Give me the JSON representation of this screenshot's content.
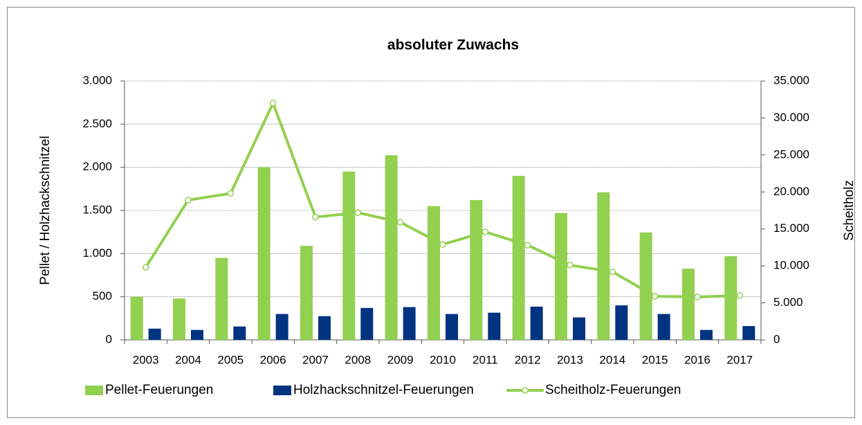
{
  "chart_data": {
    "type": "bar-line",
    "title": "absoluter Zuwachs",
    "y_label": "Pellet / Holzhackschnitzel",
    "y2_label": "Scheitholz",
    "categories": [
      "2003",
      "2004",
      "2005",
      "2006",
      "2007",
      "2008",
      "2009",
      "2010",
      "2011",
      "2012",
      "2013",
      "2014",
      "2015",
      "2016",
      "2017"
    ],
    "series": [
      {
        "name": "Pellet-Feuerungen",
        "type": "bar",
        "color": "#92d050",
        "values": [
          500,
          480,
          950,
          2000,
          1090,
          1950,
          2140,
          1550,
          1620,
          1900,
          1470,
          1710,
          1245,
          825,
          970
        ]
      },
      {
        "name": "Holzhackschnitzel-Feuerungen",
        "type": "bar",
        "color": "#003380",
        "values": [
          130,
          115,
          155,
          300,
          275,
          370,
          380,
          300,
          315,
          385,
          260,
          400,
          300,
          115,
          160
        ]
      },
      {
        "name": "Scheitholz-Feuerungen",
        "type": "line",
        "axis": "y2",
        "color": "#92d050",
        "values": [
          9800,
          18900,
          19800,
          32000,
          16600,
          17200,
          15900,
          12900,
          14600,
          12800,
          10100,
          9200,
          5900,
          5800,
          6000
        ]
      }
    ],
    "ylim": [
      0,
      3000
    ],
    "yticks": [
      0,
      500,
      {
        "value": 1000,
        "label": "1.000"
      },
      {
        "value": 1500,
        "label": "1.500"
      },
      {
        "value": 2000,
        "label": "2.000"
      },
      {
        "value": 2500,
        "label": "2.500"
      },
      {
        "value": 3000,
        "label": "3.000"
      }
    ],
    "y2lim": [
      0,
      35000
    ],
    "y2ticks": [
      0,
      {
        "value": 5000,
        "label": "5.000"
      },
      {
        "value": 10000,
        "label": "10.000"
      },
      {
        "value": 15000,
        "label": "15.000"
      },
      {
        "value": 20000,
        "label": "20.000"
      },
      {
        "value": 25000,
        "label": "25.000"
      },
      {
        "value": 30000,
        "label": "30.000"
      },
      {
        "value": 35000,
        "label": "35.000"
      }
    ],
    "grid": true,
    "legend": "bottom"
  }
}
